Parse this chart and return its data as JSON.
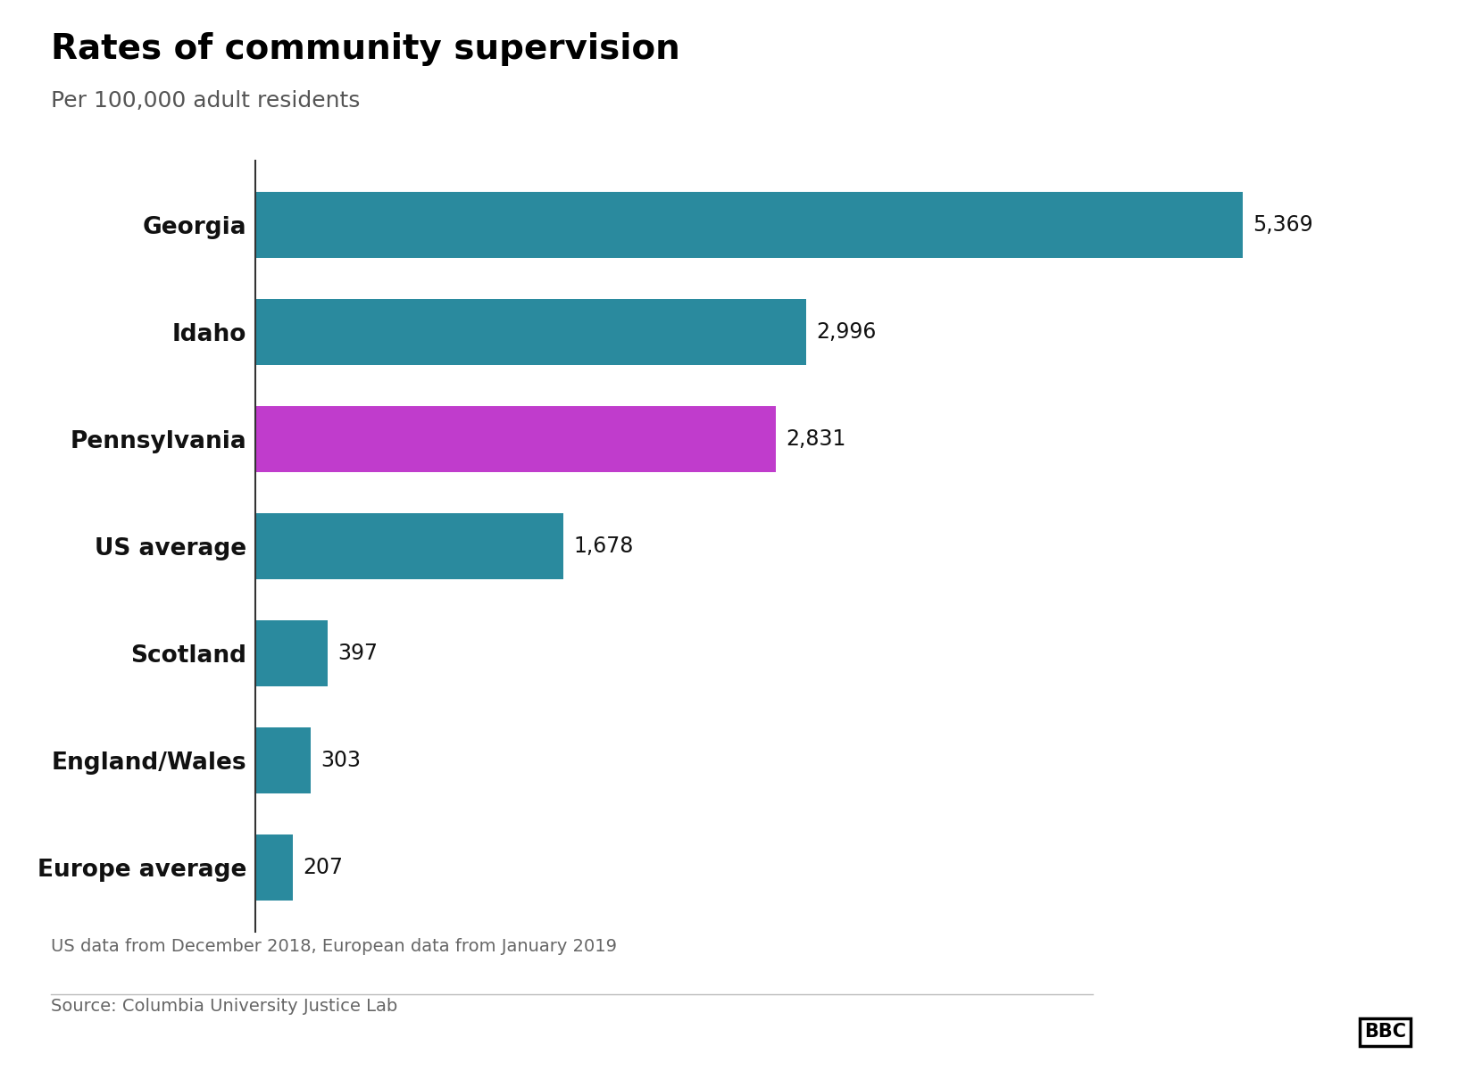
{
  "title": "Rates of community supervision",
  "subtitle": "Per 100,000 adult residents",
  "footnote": "US data from December 2018, European data from January 2019",
  "source": "Source: Columbia University Justice Lab",
  "bbc_logo": "BBC",
  "categories": [
    "Georgia",
    "Idaho",
    "Pennsylvania",
    "US average",
    "Scotland",
    "England/Wales",
    "Europe average"
  ],
  "values": [
    5369,
    2996,
    2831,
    1678,
    397,
    303,
    207
  ],
  "bar_colors": [
    "#2a8a9e",
    "#2a8a9e",
    "#c03ccc",
    "#2a8a9e",
    "#2a8a9e",
    "#2a8a9e",
    "#2a8a9e"
  ],
  "value_labels": [
    "5,369",
    "2,996",
    "2,831",
    "1,678",
    "397",
    "303",
    "207"
  ],
  "background_color": "#ffffff",
  "title_fontsize": 28,
  "subtitle_fontsize": 18,
  "label_fontsize": 19,
  "value_fontsize": 17,
  "footnote_fontsize": 14,
  "source_fontsize": 14,
  "xlim_max": 6100
}
